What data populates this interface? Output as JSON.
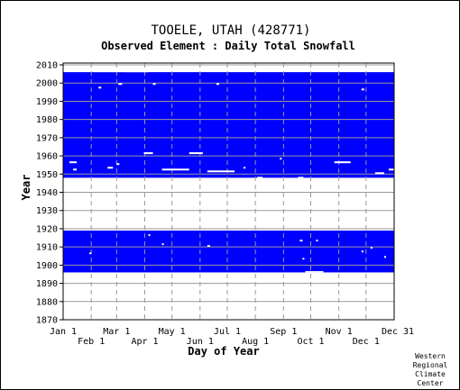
{
  "chart_data": {
    "type": "heatmap",
    "title": "TOOELE, UTAH   (428771)",
    "subtitle": "Observed Element : Daily Total Snowfall",
    "xlabel": "Day of Year",
    "ylabel": "Year",
    "x_ticks_row1": [
      "Jan 1",
      "Mar 1",
      "May 1",
      "Jul 1",
      "Sep 1",
      "Nov 1",
      "Dec 31"
    ],
    "x_ticks_row2": [
      "Feb 1",
      "Apr 1",
      "Jun 1",
      "Aug 1",
      "Oct 1",
      "Dec 1"
    ],
    "y_ticks": [
      "2010",
      "2000",
      "1990",
      "1980",
      "1970",
      "1960",
      "1950",
      "1940",
      "1930",
      "1920",
      "1910",
      "1900",
      "1890",
      "1880",
      "1870"
    ],
    "ylim": [
      1870,
      2011
    ],
    "xlim": [
      1,
      366
    ],
    "grid": true,
    "observed_color": "#0000ff",
    "observed_periods": [
      {
        "start_year": 1896,
        "end_year": 1918
      },
      {
        "start_year": 1948,
        "end_year": 2005
      }
    ],
    "credit": [
      "Western",
      "Regional",
      "Climate",
      "Center"
    ]
  }
}
